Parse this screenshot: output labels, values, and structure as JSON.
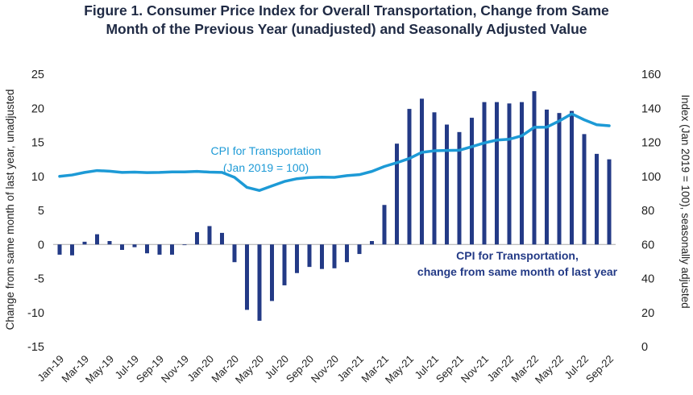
{
  "title_line1": "Figure 1. Consumer Price Index for Overall Transportation, Change from Same",
  "title_line2": "Month of the Previous Year (unadjusted) and Seasonally  Adjusted Value",
  "colors": {
    "bar": "#233a86",
    "line": "#1d9ad6",
    "axis": "#999999"
  },
  "chart_data": {
    "type": "bar+line",
    "title": "Figure 1. Consumer Price Index for Overall Transportation, Change from Same Month of the Previous Year (unadjusted) and Seasonally  Adjusted Value",
    "ylabel_left": "Change from same month of last year, unadjusted",
    "ylabel_right": "Index (Jan 2019 = 100), seasonally adjusted",
    "ylim_left": [
      -15,
      25
    ],
    "ylim_right": [
      0,
      160
    ],
    "yticks_left": [
      "25",
      "20",
      "15",
      "10",
      "5",
      "0",
      "-5",
      "-10",
      "-15"
    ],
    "yticks_right": [
      "160",
      "140",
      "120",
      "100",
      "80",
      "60",
      "40",
      "20",
      "0"
    ],
    "xtick_labels": [
      "Jan-19",
      "Mar-19",
      "May-19",
      "Jul-19",
      "Sep-19",
      "Nov-19",
      "Jan-20",
      "Mar-20",
      "May-20",
      "Jul-20",
      "Sep-20",
      "Nov-20",
      "Jan-21",
      "Mar-21",
      "May-21",
      "Jul-21",
      "Sep-21",
      "Nov-21",
      "Jan-22",
      "Mar-22",
      "May-22",
      "Jul-22",
      "Sep-22"
    ],
    "months": [
      "Jan-19",
      "Feb-19",
      "Mar-19",
      "Apr-19",
      "May-19",
      "Jun-19",
      "Jul-19",
      "Aug-19",
      "Sep-19",
      "Oct-19",
      "Nov-19",
      "Dec-19",
      "Jan-20",
      "Feb-20",
      "Mar-20",
      "Apr-20",
      "May-20",
      "Jun-20",
      "Jul-20",
      "Aug-20",
      "Sep-20",
      "Oct-20",
      "Nov-20",
      "Dec-20",
      "Jan-21",
      "Feb-21",
      "Mar-21",
      "Apr-21",
      "May-21",
      "Jun-21",
      "Jul-21",
      "Aug-21",
      "Sep-21",
      "Oct-21",
      "Nov-21",
      "Dec-21",
      "Jan-22",
      "Feb-22",
      "Mar-22",
      "Apr-22",
      "May-22",
      "Jun-22",
      "Jul-22",
      "Aug-22",
      "Sep-22"
    ],
    "series": [
      {
        "name": "CPI for Transportation, change from same month of last year",
        "type": "bar",
        "axis": "left",
        "values": [
          -1.5,
          -1.6,
          0.4,
          1.5,
          0.5,
          -0.8,
          -0.4,
          -1.3,
          -1.5,
          -1.5,
          -0.1,
          1.8,
          2.7,
          1.7,
          -2.6,
          -9.6,
          -11.2,
          -8.3,
          -6.0,
          -4.2,
          -3.3,
          -3.6,
          -3.5,
          -2.6,
          -1.4,
          0.5,
          5.8,
          14.8,
          19.9,
          21.4,
          19.4,
          17.6,
          16.5,
          18.6,
          20.9,
          20.9,
          20.7,
          20.9,
          22.5,
          19.8,
          19.3,
          19.6,
          16.2,
          13.3,
          12.5
        ]
      },
      {
        "name": "CPI for Transportation (Jan 2019 = 100)",
        "type": "line",
        "axis": "right",
        "values": [
          100.0,
          100.8,
          102.3,
          103.4,
          103.0,
          102.3,
          102.5,
          102.2,
          102.3,
          102.6,
          102.6,
          102.9,
          102.5,
          102.3,
          99.4,
          93.5,
          91.7,
          94.4,
          97.0,
          98.6,
          99.3,
          99.5,
          99.4,
          100.4,
          101.0,
          102.9,
          105.8,
          108.0,
          110.5,
          114.1,
          115.0,
          115.2,
          115.3,
          117.4,
          119.6,
          121.3,
          121.8,
          123.8,
          128.8,
          128.9,
          132.5,
          136.7,
          133.2,
          130.3,
          129.7
        ]
      }
    ],
    "annotations": {
      "line_label": [
        "CPI for Transportation",
        "(Jan 2019 = 100)"
      ],
      "bar_label": [
        "CPI for Transportation,",
        "change from same month of last year"
      ]
    }
  }
}
